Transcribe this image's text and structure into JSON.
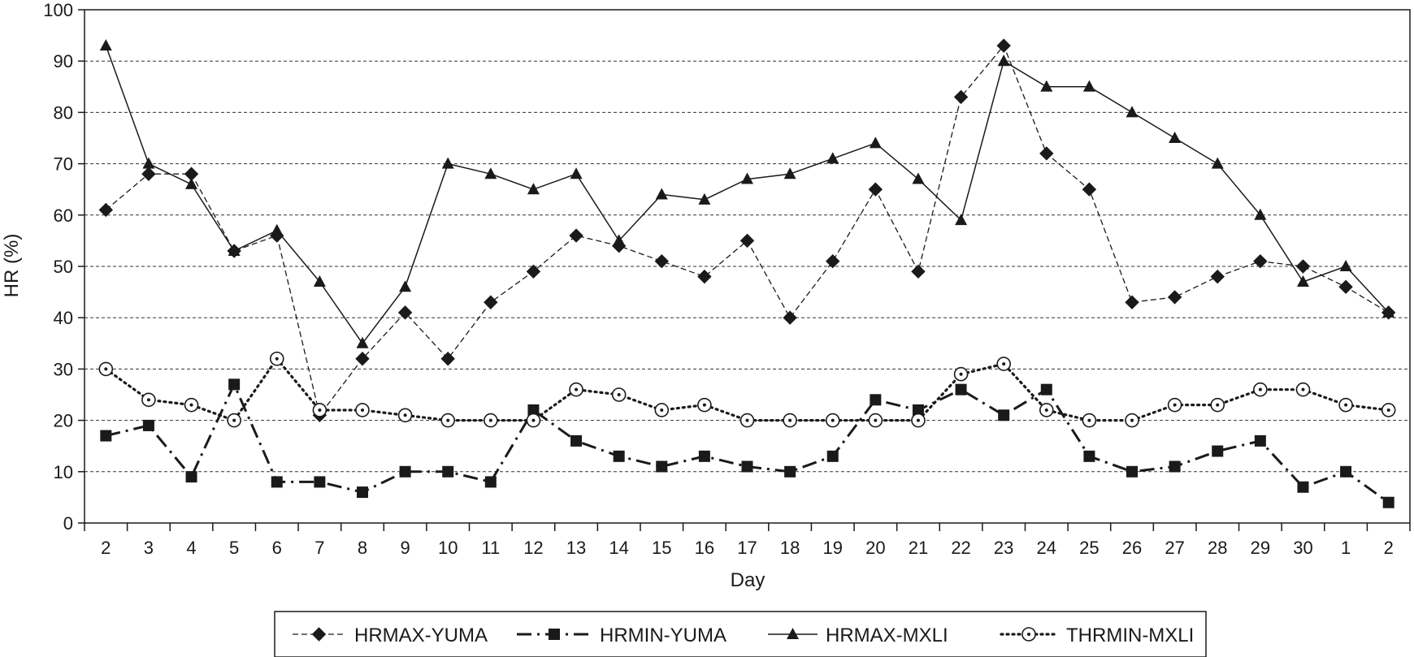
{
  "chart_data": {
    "type": "line",
    "title": "",
    "xlabel": "Day",
    "ylabel": "HR (%)",
    "ylim": [
      0,
      100
    ],
    "yticks": [
      0,
      10,
      20,
      30,
      40,
      50,
      60,
      70,
      80,
      90,
      100
    ],
    "grid": "horizontal-dashed",
    "legend_position": "bottom",
    "categories": [
      "2",
      "3",
      "4",
      "5",
      "6",
      "7",
      "8",
      "9",
      "10",
      "11",
      "12",
      "13",
      "14",
      "15",
      "16",
      "17",
      "18",
      "19",
      "20",
      "21",
      "22",
      "23",
      "24",
      "25",
      "26",
      "27",
      "28",
      "29",
      "30",
      "1",
      "2"
    ],
    "series": [
      {
        "name": "HRMAX-YUMA",
        "line_style": "dashed",
        "marker": "diamond",
        "color": "#1a1a1a",
        "values": [
          61,
          68,
          68,
          53,
          56,
          21,
          32,
          41,
          32,
          43,
          49,
          56,
          54,
          51,
          48,
          55,
          40,
          51,
          65,
          49,
          83,
          93,
          72,
          65,
          43,
          44,
          48,
          51,
          50,
          46,
          41
        ]
      },
      {
        "name": "HRMIN-YUMA",
        "line_style": "dash-dot",
        "marker": "square",
        "color": "#1a1a1a",
        "values": [
          17,
          19,
          9,
          27,
          8,
          8,
          6,
          10,
          10,
          8,
          22,
          16,
          13,
          11,
          13,
          11,
          10,
          13,
          24,
          22,
          26,
          21,
          26,
          13,
          10,
          11,
          14,
          16,
          7,
          10,
          4
        ]
      },
      {
        "name": "HRMAX-MXLI",
        "line_style": "solid",
        "marker": "triangle",
        "color": "#1a1a1a",
        "values": [
          93,
          70,
          66,
          53,
          57,
          47,
          35,
          46,
          70,
          68,
          65,
          68,
          55,
          64,
          63,
          67,
          68,
          71,
          74,
          67,
          59,
          90,
          85,
          85,
          80,
          75,
          70,
          60,
          47,
          50,
          41
        ]
      },
      {
        "name": "THRMIN-MXLI",
        "line_style": "dotted",
        "marker": "circle-open",
        "color": "#1a1a1a",
        "values": [
          30,
          24,
          23,
          20,
          32,
          22,
          22,
          21,
          20,
          20,
          20,
          26,
          25,
          22,
          23,
          20,
          20,
          20,
          20,
          20,
          29,
          31,
          22,
          20,
          20,
          23,
          23,
          26,
          26,
          23,
          22
        ]
      }
    ]
  }
}
